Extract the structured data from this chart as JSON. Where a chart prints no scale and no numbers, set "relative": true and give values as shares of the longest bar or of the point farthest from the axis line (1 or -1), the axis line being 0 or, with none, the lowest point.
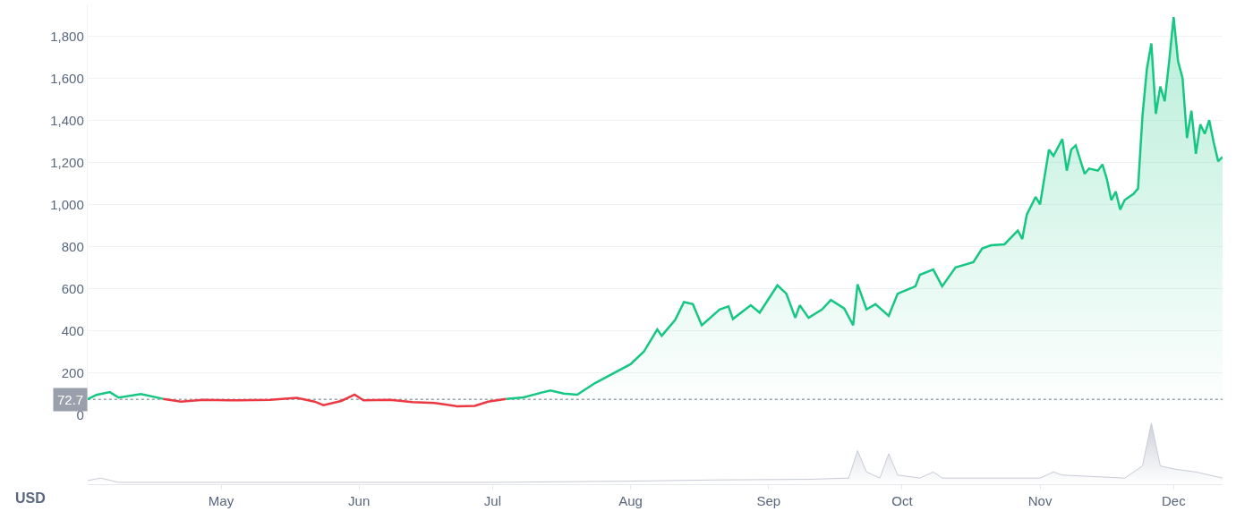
{
  "chart_data": [
    {
      "type": "area",
      "xlim": [
        "--04-01",
        "--12-12"
      ],
      "ylim": [
        0,
        1950
      ],
      "yticks": [
        {
          "value": 0,
          "label": "0"
        },
        {
          "value": 200,
          "label": "200"
        },
        {
          "value": 400,
          "label": "400"
        },
        {
          "value": 600,
          "label": "600"
        },
        {
          "value": 800,
          "label": "800"
        },
        {
          "value": 1000,
          "label": "1,000"
        },
        {
          "value": 1200,
          "label": "1,200"
        },
        {
          "value": 1400,
          "label": "1,400"
        },
        {
          "value": 1600,
          "label": "1,600"
        },
        {
          "value": 1800,
          "label": "1,800"
        }
      ],
      "grid": "y",
      "tick_labels": "y",
      "ref_lines": [
        {
          "axis": "y",
          "value": 72.7,
          "label": "72.7",
          "color": "#9aa0ab",
          "line_style": "dotted"
        }
      ],
      "series": [
        {
          "type": "area",
          "color": "#16c784",
          "x": [
            "--04-01",
            "--04-03",
            "--04-06",
            "--04-08",
            "--04-13",
            "--04-18",
            "--04-22",
            "--04-27",
            "--05-05",
            "--05-12",
            "--05-18",
            "--05-22",
            "--05-24",
            "--05-28",
            "--05-31",
            "--06-02",
            "--06-08",
            "--06-13",
            "--06-18",
            "--06-23",
            "--06-27",
            "--06-30",
            "--07-04",
            "--07-08",
            "--07-12",
            "--07-14",
            "--07-17",
            "--07-20",
            "--07-24",
            "--08-01",
            "--08-04",
            "--08-07",
            "--08-08",
            "--08-11",
            "--08-13",
            "--08-15",
            "--08-17",
            "--08-21",
            "--08-23",
            "--08-24",
            "--08-28",
            "--08-30",
            "--09-03",
            "--09-05",
            "--09-07",
            "--09-08",
            "--09-10",
            "--09-13",
            "--09-15",
            "--09-18",
            "--09-20",
            "--09-21",
            "--09-23",
            "--09-25",
            "--09-28",
            "--09-30",
            "--10-04",
            "--10-05",
            "--10-08",
            "--10-10",
            "--10-13",
            "--10-17",
            "--10-19",
            "--10-21",
            "--10-24",
            "--10-27",
            "--10-28",
            "--10-29",
            "--10-31",
            "--11-01",
            "--11-03",
            "--11-04",
            "--11-06",
            "--11-07",
            "--11-08",
            "--11-09",
            "--11-11",
            "--11-12",
            "--11-14",
            "--11-15",
            "--11-16",
            "--11-17",
            "--11-18",
            "--11-19",
            "--11-20",
            "--11-22",
            "--11-23",
            "--11-24",
            "--11-25",
            "--11-26",
            "--11-27",
            "--11-28",
            "--11-29",
            "--11-30",
            "--12-01",
            "--12-02",
            "--12-03",
            "--12-04",
            "--12-05",
            "--12-06",
            "--12-07",
            "--12-08",
            "--12-09",
            "--12-10",
            "--12-11",
            "--12-12"
          ],
          "values": [
            73,
            94,
            107,
            81,
            98,
            75,
            null,
            null,
            null,
            null,
            null,
            null,
            null,
            null,
            null,
            null,
            null,
            null,
            null,
            null,
            null,
            null,
            75,
            82,
            105,
            115,
            100,
            95,
            150,
            240,
            300,
            405,
            375,
            450,
            535,
            525,
            425,
            500,
            515,
            455,
            520,
            485,
            615,
            575,
            460,
            520,
            460,
            500,
            545,
            505,
            425,
            620,
            500,
            525,
            470,
            575,
            610,
            665,
            690,
            610,
            700,
            725,
            790,
            805,
            810,
            875,
            835,
            950,
            1035,
            1000,
            1260,
            1230,
            1310,
            1160,
            1260,
            1280,
            1145,
            1170,
            1160,
            1190,
            1120,
            1020,
            1060,
            975,
            1020,
            1050,
            1075,
            1420,
            1645,
            1765,
            1430,
            1560,
            1490,
            1680,
            1890,
            1680,
            1600,
            1315,
            1445,
            1240,
            1380,
            1335,
            1400,
            1295,
            1205,
            1225
          ]
        },
        {
          "type": "line",
          "color": "#ea3943",
          "x": [
            "--04-18",
            "--04-22",
            "--04-27",
            "--05-05",
            "--05-12",
            "--05-18",
            "--05-22",
            "--05-24",
            "--05-28",
            "--05-31",
            "--06-02",
            "--06-08",
            "--06-13",
            "--06-18",
            "--06-23",
            "--06-27",
            "--06-30",
            "--07-04"
          ],
          "values": [
            75,
            62,
            70,
            68,
            70,
            80,
            62,
            45,
            65,
            95,
            68,
            70,
            60,
            55,
            40,
            42,
            62,
            75
          ]
        }
      ]
    },
    {
      "type": "area",
      "relative": true,
      "xlim": [
        "--04-01",
        "--12-12"
      ],
      "tick_labels": "x",
      "xticks": [
        {
          "value": "--05-01",
          "label": "May"
        },
        {
          "value": "--06-01",
          "label": "Jun"
        },
        {
          "value": "--07-01",
          "label": "Jul"
        },
        {
          "value": "--08-01",
          "label": "Aug"
        },
        {
          "value": "--09-01",
          "label": "Sep"
        },
        {
          "value": "--10-01",
          "label": "Oct"
        },
        {
          "value": "--11-01",
          "label": "Nov"
        },
        {
          "value": "--12-01",
          "label": "Dec"
        }
      ],
      "annotations": [
        "USD"
      ],
      "series": [
        {
          "color": "#c8ccd6",
          "x": [
            "--04-01",
            "--04-04",
            "--04-08",
            "--05-01",
            "--06-01",
            "--07-01",
            "--08-01",
            "--08-20",
            "--09-10",
            "--09-19",
            "--09-21",
            "--09-23",
            "--09-26",
            "--09-28",
            "--09-30",
            "--10-05",
            "--10-08",
            "--10-10",
            "--11-01",
            "--11-04",
            "--11-06",
            "--11-20",
            "--11-24",
            "--11-26",
            "--11-28",
            "--12-01",
            "--12-06",
            "--12-12"
          ],
          "values": [
            0.06,
            0.1,
            0.03,
            0.03,
            0.03,
            0.03,
            0.05,
            0.07,
            0.08,
            0.1,
            0.55,
            0.2,
            0.1,
            0.5,
            0.15,
            0.1,
            0.2,
            0.1,
            0.1,
            0.2,
            0.15,
            0.1,
            0.3,
            1,
            0.3,
            0.25,
            0.2,
            0.1
          ]
        }
      ]
    }
  ]
}
